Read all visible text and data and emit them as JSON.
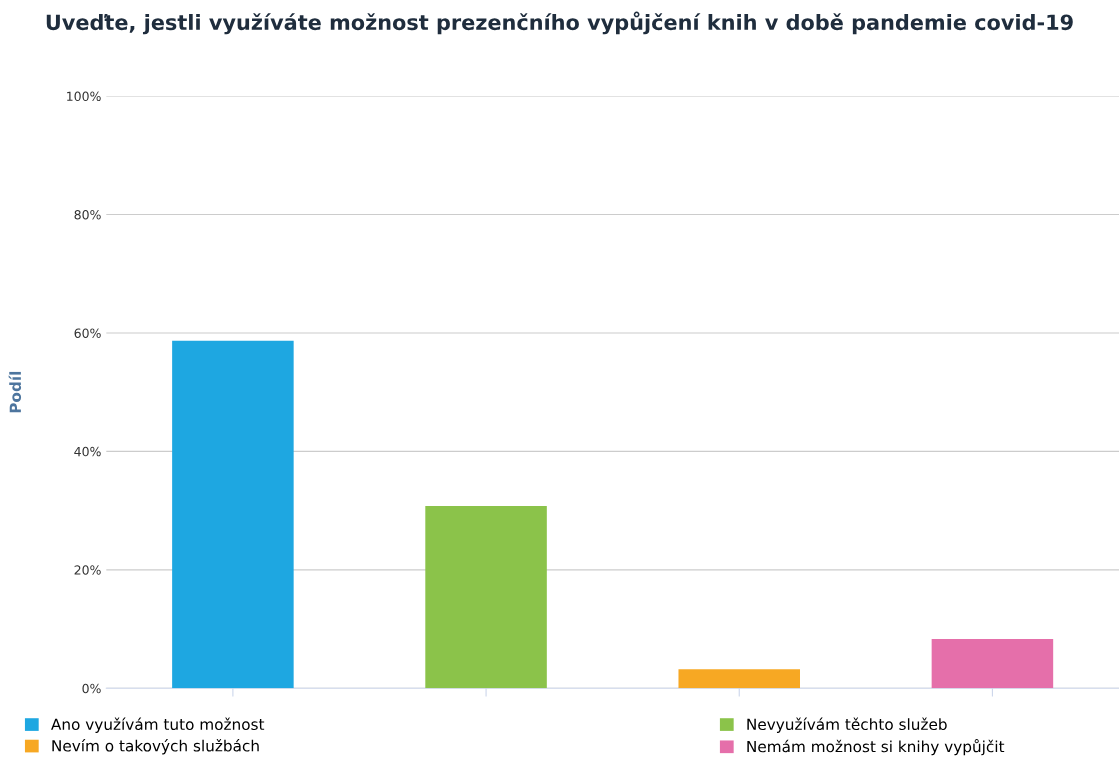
{
  "chart_data": {
    "type": "bar",
    "title": "Uveďte, jestli využíváte možnost prezenčního vypůjčení knih v době pandemie covid-19",
    "ylabel": "Podíl",
    "categories": [
      null,
      null,
      null,
      null
    ],
    "series": [
      {
        "name": "Ano využívám tuto možnost",
        "color": "#1ea7e1",
        "values": [
          58.7,
          null,
          null,
          null
        ]
      },
      {
        "name": "Nevyužívám těchto služeb",
        "color": "#8bc34a",
        "values": [
          null,
          30.8,
          null,
          null
        ]
      },
      {
        "name": "Nevím o takových službách",
        "color": "#f7a823",
        "values": [
          null,
          null,
          3.2,
          null
        ]
      },
      {
        "name": "Nemám možnost si knihy vypůjčit",
        "color": "#e56faa",
        "values": [
          null,
          null,
          null,
          8.3
        ]
      }
    ],
    "stacked": true,
    "ylim": [
      0,
      100
    ],
    "yticks": [
      {
        "value": 0,
        "label": "0%"
      },
      {
        "value": 20,
        "label": "20%"
      },
      {
        "value": 40,
        "label": "40%"
      },
      {
        "value": 60,
        "label": "60%"
      },
      {
        "value": 80,
        "label": "80%"
      },
      {
        "value": 100,
        "label": "100%"
      }
    ],
    "grid": "y",
    "legend": "bottom",
    "tick_labels": "y"
  }
}
